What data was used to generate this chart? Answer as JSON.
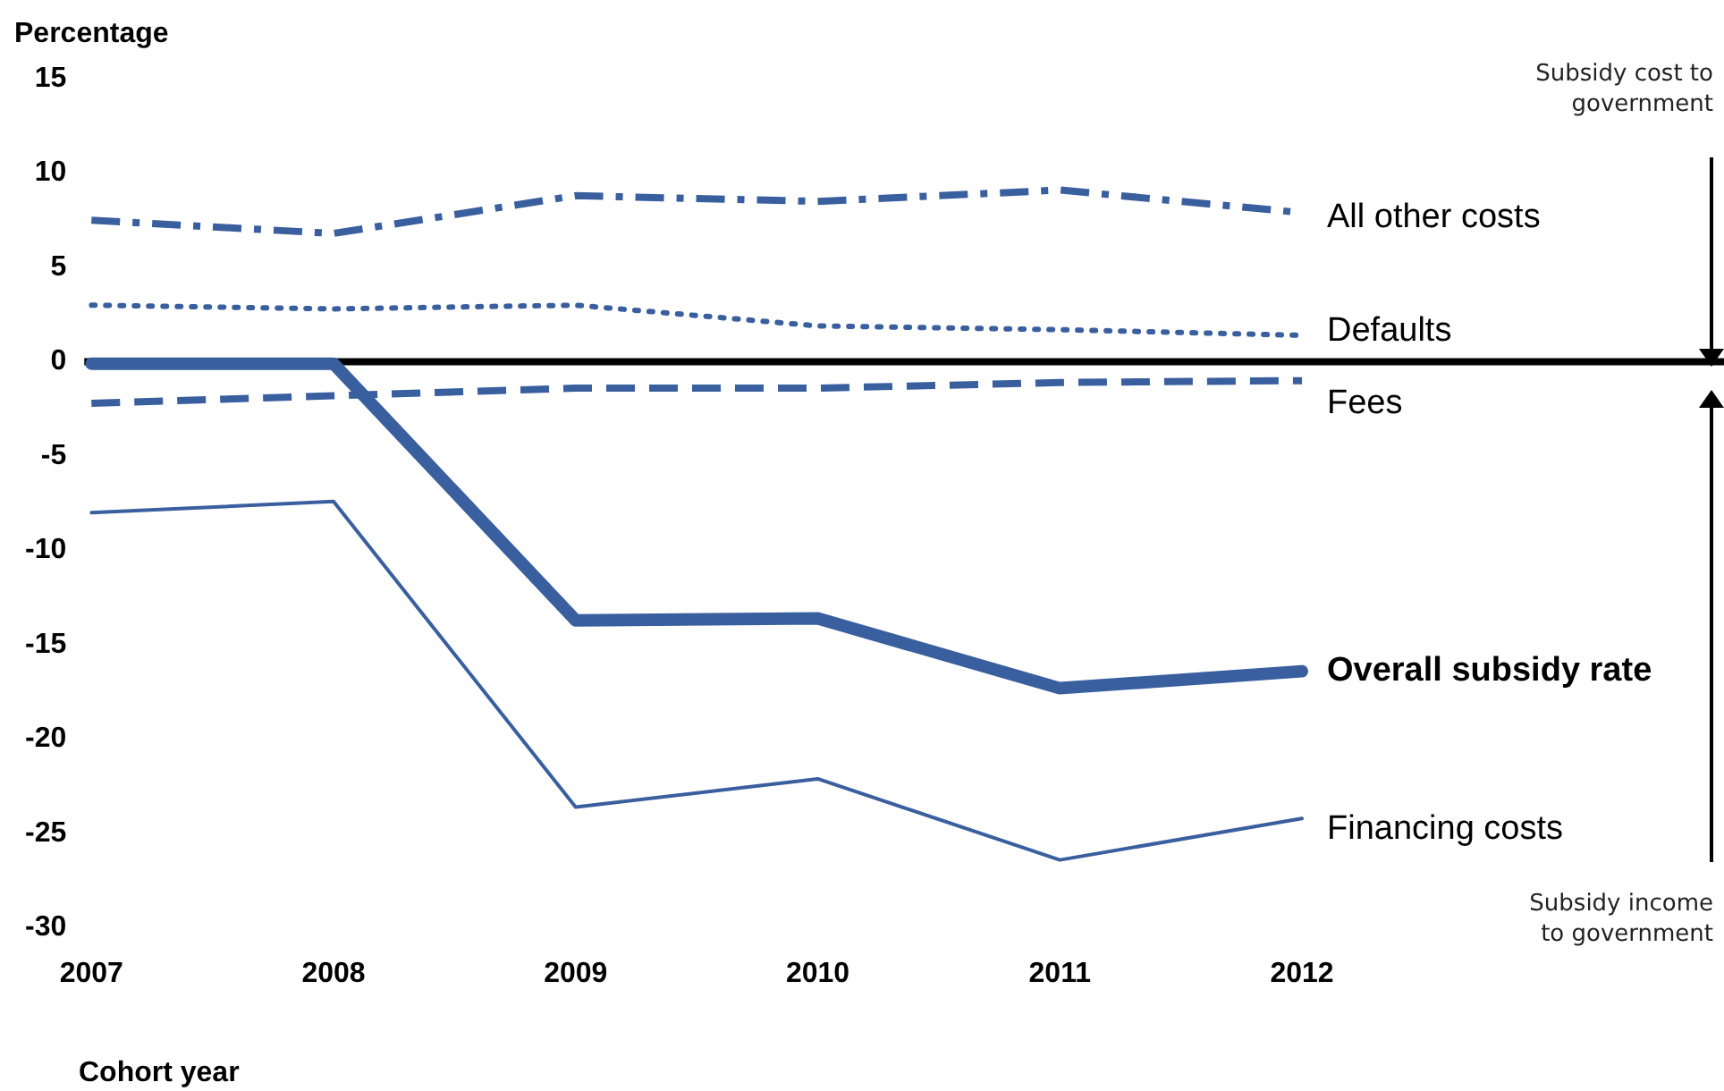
{
  "chart_data": {
    "type": "line",
    "ylabel": "Percentage",
    "xlabel": "Cohort year",
    "categories": [
      "2007",
      "2008",
      "2009",
      "2010",
      "2011",
      "2012"
    ],
    "series": [
      {
        "name": "All other costs",
        "color": "#3a5f9e",
        "line_style": "dashdot",
        "values": [
          7.5,
          6.8,
          8.8,
          8.5,
          9.1,
          7.9
        ]
      },
      {
        "name": "Defaults",
        "color": "#3a5f9e",
        "line_style": "dotted",
        "values": [
          3.0,
          2.8,
          3.0,
          1.9,
          1.7,
          1.4
        ]
      },
      {
        "name": "Fees",
        "color": "#3a5f9e",
        "line_style": "dashed",
        "values": [
          -2.2,
          -1.8,
          -1.4,
          -1.4,
          -1.1,
          -1.0
        ]
      },
      {
        "name": "Overall subsidy rate",
        "color": "#3a5f9e",
        "line_style": "solid",
        "values": [
          -0.1,
          -0.1,
          -13.7,
          -13.6,
          -17.3,
          -16.4
        ]
      },
      {
        "name": "Financing costs",
        "color": "#3a5f9e",
        "line_style": "solid",
        "values": [
          -8.0,
          -7.4,
          -23.6,
          -22.1,
          -26.4,
          -24.2
        ]
      }
    ],
    "ylim": [
      -30,
      15
    ],
    "yticks": [
      -30,
      -25,
      -20,
      -15,
      -10,
      -5,
      0,
      5,
      10,
      15
    ],
    "ref_lines": [
      {
        "axis": "y",
        "value": 0,
        "color": "#000000"
      }
    ],
    "annotations": [
      "Subsidy cost to government",
      "Subsidy income to government"
    ],
    "grid": false,
    "legend": false,
    "marker": "none"
  }
}
